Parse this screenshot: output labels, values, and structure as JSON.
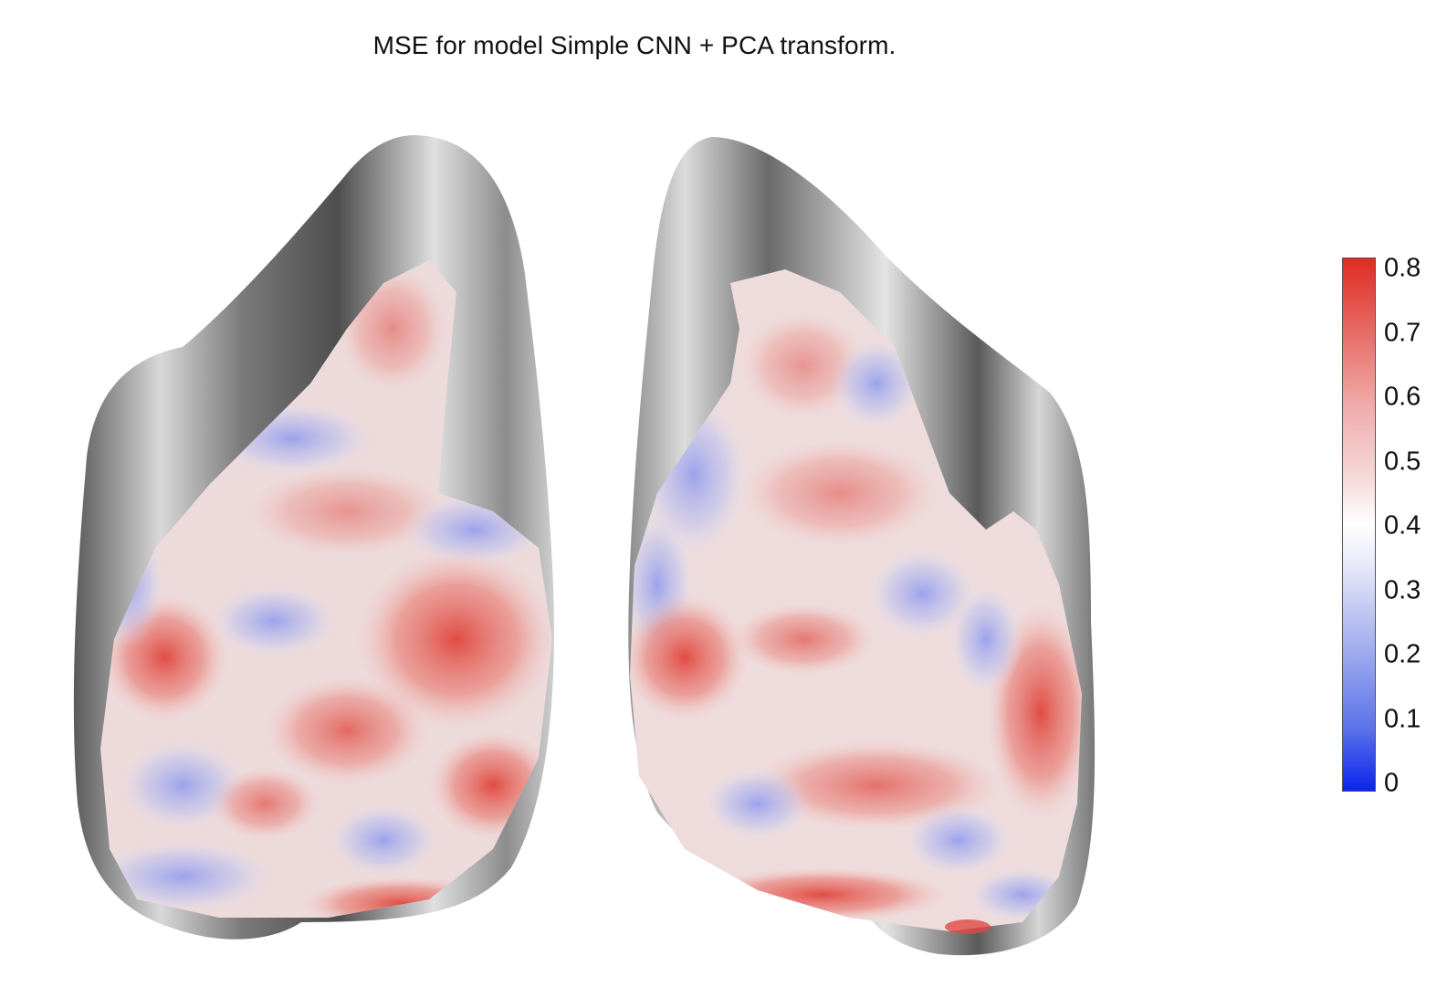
{
  "title": "MSE for model Simple CNN + PCA transform.",
  "colorbar": {
    "min": 0,
    "max": 0.8,
    "ticks": [
      "0",
      "0.1",
      "0.2",
      "0.3",
      "0.4",
      "0.5",
      "0.6",
      "0.7",
      "0.8"
    ],
    "colormap": [
      "#0a25ee",
      "#ffffff",
      "#e02c22"
    ]
  },
  "hemispheres": [
    "left",
    "right"
  ]
}
